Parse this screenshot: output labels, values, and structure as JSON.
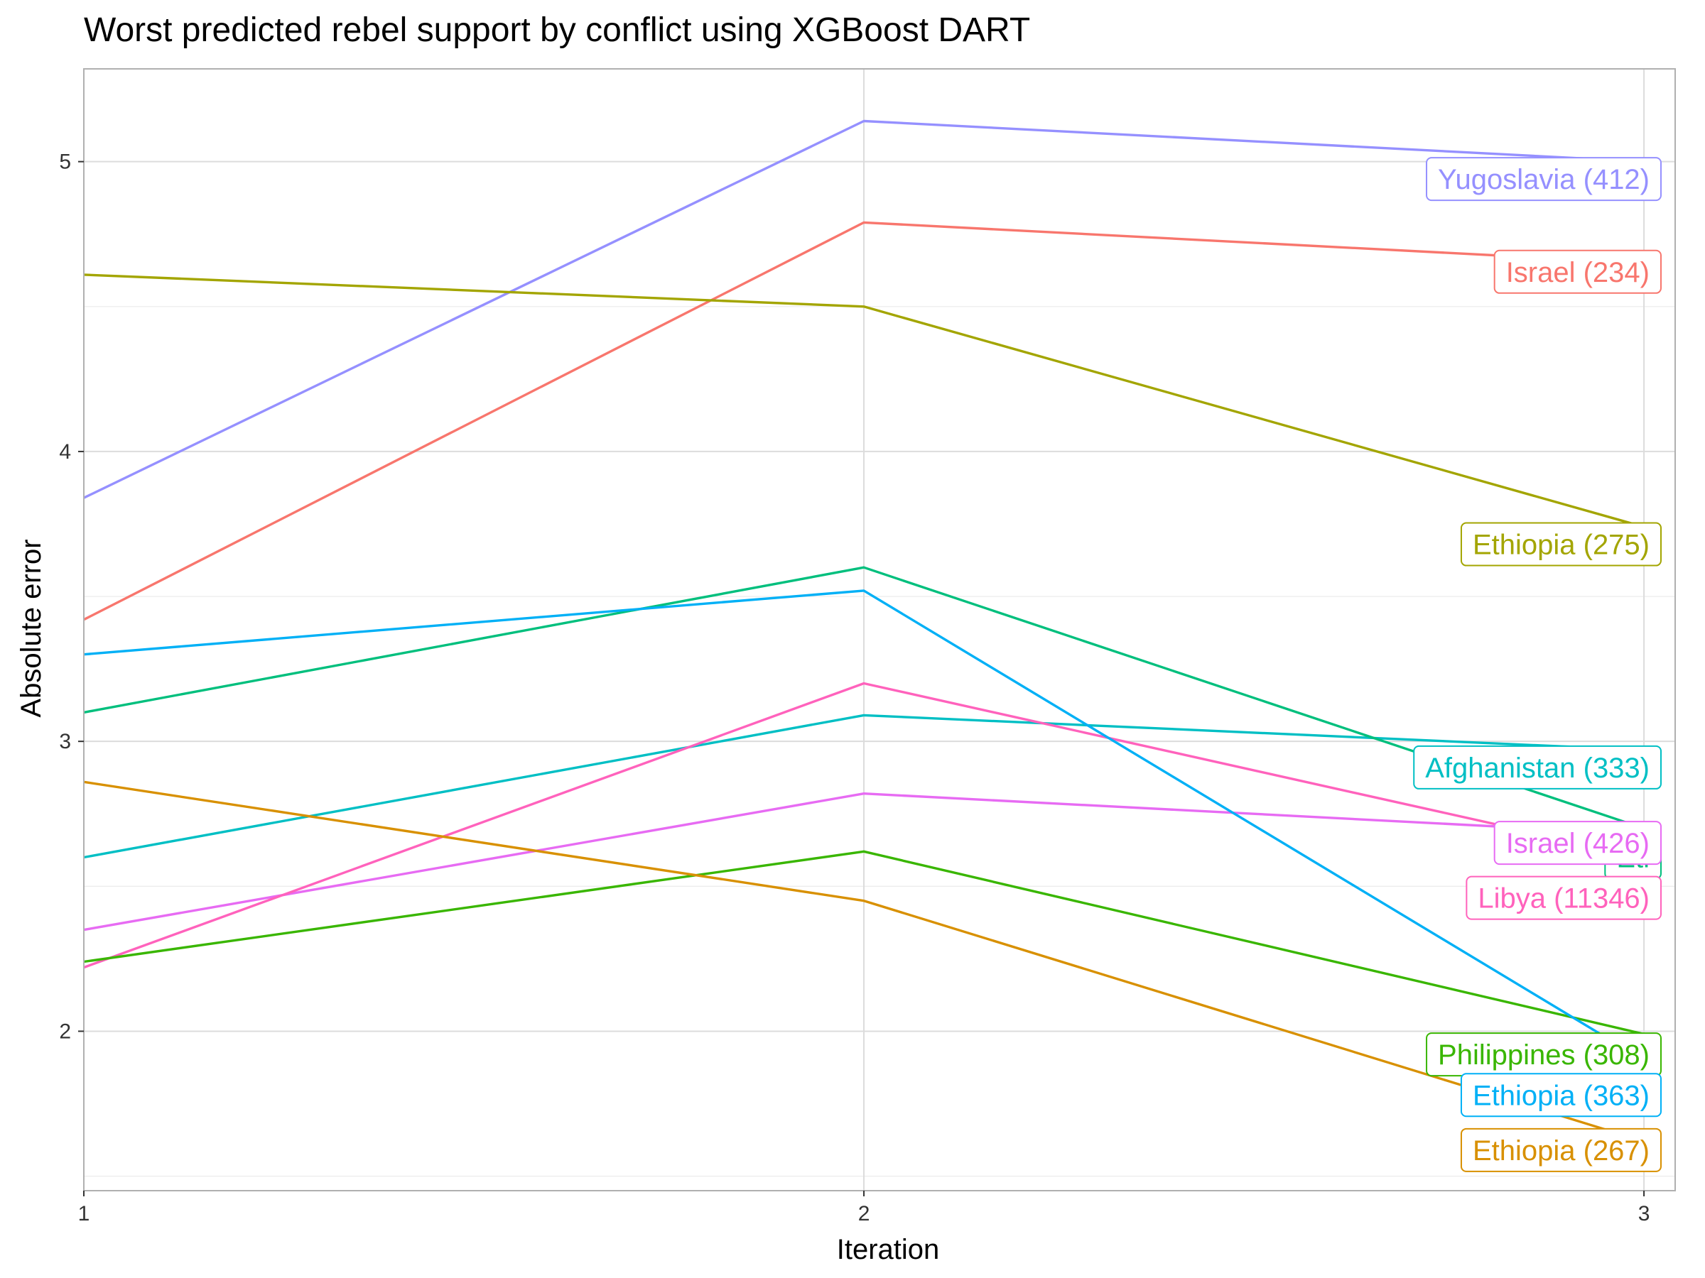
{
  "chart_data": {
    "type": "line",
    "title": "Worst predicted rebel support by conflict using XGBoost DART",
    "xlabel": "Iteration",
    "ylabel": "Absolute error",
    "x": [
      1,
      2,
      3
    ],
    "xlim": [
      1,
      3.04
    ],
    "ylim": [
      1.45,
      5.32
    ],
    "xticks": [
      "1",
      "2",
      "3"
    ],
    "yticks": [
      "2",
      "3",
      "4",
      "5"
    ],
    "grid": true,
    "legend": "none (direct labels at line ends)",
    "series": [
      {
        "name": "Yugoslavia (412)",
        "color": "#9590FF",
        "values": [
          3.84,
          5.14,
          5.0
        ]
      },
      {
        "name": "Israel (234)",
        "color": "#F8766D",
        "values": [
          3.42,
          4.79,
          4.65
        ]
      },
      {
        "name": "Ethiopia (275)",
        "color": "#A3A500",
        "values": [
          4.61,
          4.5,
          3.74
        ]
      },
      {
        "name": "Afghanistan (333)",
        "color": "#00BFC4",
        "values": [
          2.6,
          3.09,
          2.97
        ]
      },
      {
        "name": "Ethiopia (...)",
        "color": "#00BF7D",
        "values": [
          3.1,
          3.6,
          2.7
        ]
      },
      {
        "name": "Israel (426)",
        "color": "#E76BF3",
        "values": [
          2.35,
          2.82,
          2.68
        ]
      },
      {
        "name": "Libya (11346)",
        "color": "#FF62BC",
        "values": [
          2.22,
          3.2,
          2.6
        ]
      },
      {
        "name": "Philippines (308)",
        "color": "#39B600",
        "values": [
          2.24,
          2.62,
          1.99
        ]
      },
      {
        "name": "Ethiopia (363)",
        "color": "#00B0F6",
        "values": [
          3.3,
          3.52,
          1.9
        ]
      },
      {
        "name": "Ethiopia (267)",
        "color": "#D89000",
        "values": [
          2.86,
          2.45,
          1.62
        ]
      }
    ],
    "labels": [
      {
        "text": "Yugoslavia (412)",
        "color": "#9590FF",
        "y": 4.94
      },
      {
        "text": "Israel (234)",
        "color": "#F8766D",
        "y": 4.62
      },
      {
        "text": "Ethiopia (275)",
        "color": "#A3A500",
        "y": 3.68
      },
      {
        "text": "Afghanistan (333)",
        "color": "#00BFC4",
        "y": 2.91
      },
      {
        "text": "Eti",
        "color": "#00BF7D",
        "y": 2.6
      },
      {
        "text": "Israel (426)",
        "color": "#E76BF3",
        "y": 2.65
      },
      {
        "text": "Libya (11346)",
        "color": "#FF62BC",
        "y": 2.46
      },
      {
        "text": "Philippines (308)",
        "color": "#39B600",
        "y": 1.92
      },
      {
        "text": "Ethiopia (363)",
        "color": "#00B0F6",
        "y": 1.78
      },
      {
        "text": "Ethiopia (267)",
        "color": "#D89000",
        "y": 1.59
      }
    ]
  }
}
